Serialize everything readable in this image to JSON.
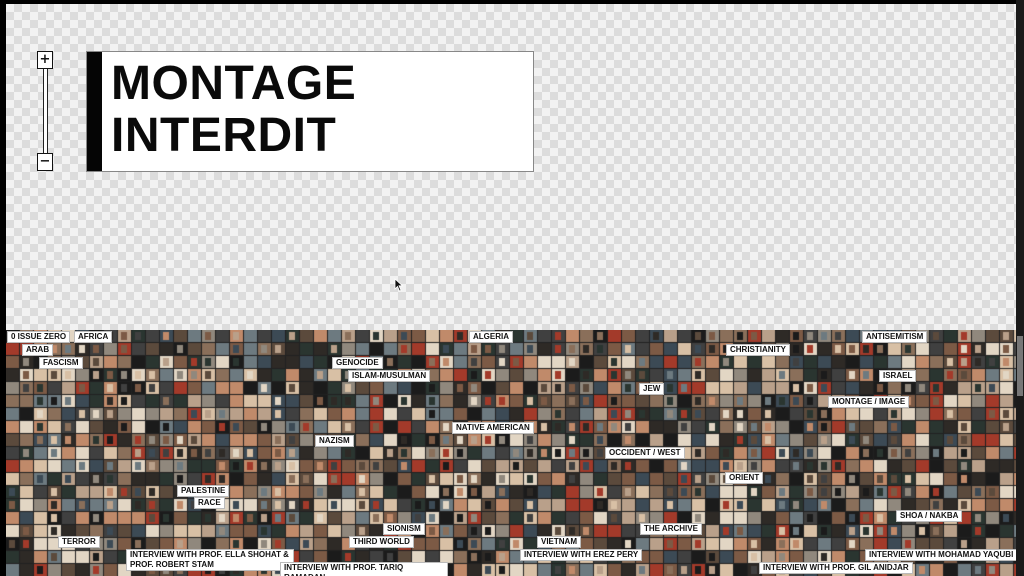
{
  "title": {
    "line1": "MONTAGE",
    "line2": "INTERDIT"
  },
  "zoom": {
    "plus": "+",
    "minus": "−"
  },
  "tags": [
    "0 ISSUE ZERO",
    "AFRICA",
    "ARAB",
    "FASCISM",
    "ALGERIA",
    "ANTISEMITISM",
    "GENOCIDE",
    "CHRISTIANITY",
    "ISLAM-MUSULMAN",
    "ISRAEL",
    "JEW",
    "MONTAGE / IMAGE",
    "NATIVE AMERICAN",
    "NAZISM",
    "OCCIDENT / WEST",
    "ORIENT",
    "PALESTINE",
    "RACE",
    "SHOA / NAKBA",
    "SIONISM",
    "THE ARCHIVE",
    "TERROR",
    "THIRD WORLD",
    "VIETNAM",
    "INTERVIEW WITH PROF. ELLA SHOHAT & PROF. ROBERT STAM",
    "INTERVIEW WITH EREZ PERY",
    "INTERVIEW WITH MOHAMAD YAQUBI",
    "INTERVIEW WITH PROF. TARIQ RAMADAN",
    "INTERVIEW WITH PROF. GIL ANIDJAR"
  ],
  "colors": {
    "title_bar": "#050505",
    "background": "#f2f2f2"
  }
}
